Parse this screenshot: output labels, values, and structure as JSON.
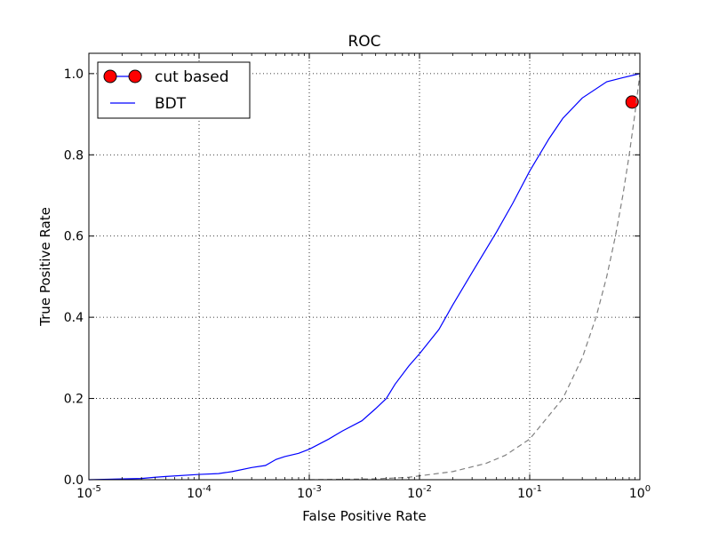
{
  "chart_data": {
    "type": "line",
    "title": "ROC",
    "xlabel": "False Positive Rate",
    "ylabel": "True Positive Rate",
    "xscale": "log",
    "xlim": [
      1e-05,
      1
    ],
    "ylim": [
      0,
      1.05
    ],
    "grid": true,
    "legend_position": "top-left",
    "x_ticks": [
      {
        "value": 1e-05,
        "base": "10",
        "exp": "-5"
      },
      {
        "value": 0.0001,
        "base": "10",
        "exp": "-4"
      },
      {
        "value": 0.001,
        "base": "10",
        "exp": "-3"
      },
      {
        "value": 0.01,
        "base": "10",
        "exp": "-2"
      },
      {
        "value": 0.1,
        "base": "10",
        "exp": "-1"
      },
      {
        "value": 1,
        "base": "10",
        "exp": "0"
      }
    ],
    "y_ticks": [
      {
        "value": 0,
        "label": "0.0"
      },
      {
        "value": 0.2,
        "label": "0.2"
      },
      {
        "value": 0.4,
        "label": "0.4"
      },
      {
        "value": 0.6,
        "label": "0.6"
      },
      {
        "value": 0.8,
        "label": "0.8"
      },
      {
        "value": 1,
        "label": "1.0"
      }
    ],
    "series": [
      {
        "name": "cut based",
        "kind": "marker",
        "color": "#ff0000",
        "x": [
          0.85
        ],
        "y": [
          0.93
        ]
      },
      {
        "name": "BDT",
        "kind": "line",
        "color": "#0000ff",
        "x": [
          1e-05,
          3e-05,
          4e-05,
          5e-05,
          0.0001,
          0.00015,
          0.0002,
          0.0003,
          0.0004,
          0.0005,
          0.0006,
          0.0008,
          0.001,
          0.0015,
          0.002,
          0.003,
          0.004,
          0.005,
          0.006,
          0.008,
          0.01,
          0.015,
          0.02,
          0.03,
          0.05,
          0.07,
          0.1,
          0.15,
          0.2,
          0.3,
          0.5,
          0.7,
          1
        ],
        "y": [
          0,
          0.003,
          0.006,
          0.008,
          0.013,
          0.015,
          0.02,
          0.03,
          0.035,
          0.05,
          0.057,
          0.065,
          0.075,
          0.1,
          0.12,
          0.145,
          0.175,
          0.2,
          0.235,
          0.28,
          0.31,
          0.37,
          0.43,
          0.51,
          0.61,
          0.68,
          0.76,
          0.84,
          0.89,
          0.94,
          0.98,
          0.99,
          1.0
        ]
      },
      {
        "kind": "dashed-line",
        "color": "#808080",
        "x": [
          0.001,
          0.004,
          0.008,
          0.02,
          0.04,
          0.06,
          0.1,
          0.2,
          0.3,
          0.4,
          0.5,
          0.6,
          0.7,
          0.8,
          0.9,
          1
        ],
        "y": [
          0,
          0.002,
          0.006,
          0.02,
          0.04,
          0.06,
          0.1,
          0.2,
          0.3,
          0.4,
          0.5,
          0.6,
          0.7,
          0.8,
          0.9,
          1.0
        ]
      }
    ]
  }
}
